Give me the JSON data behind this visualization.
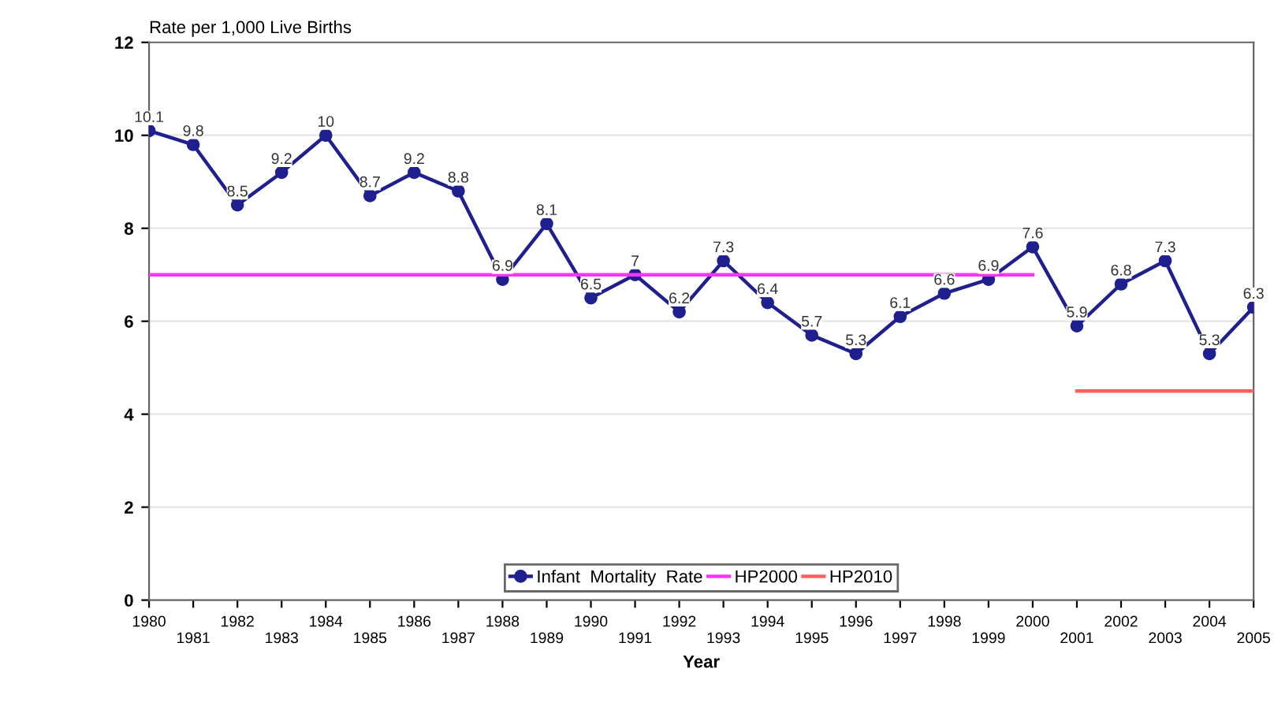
{
  "chart_data": {
    "type": "line",
    "ylabel": "Rate per 1,000 Live Births",
    "xlabel": "Year",
    "categories": [
      "1980",
      "1981",
      "1982",
      "1983",
      "1984",
      "1985",
      "1986",
      "1987",
      "1988",
      "1989",
      "1990",
      "1991",
      "1992",
      "1993",
      "1994",
      "1995",
      "1996",
      "1997",
      "1998",
      "1999",
      "2000",
      "2001",
      "2002",
      "2003",
      "2004",
      "2005"
    ],
    "series": [
      {
        "name": "Infant  Mortality  Rate",
        "color": "#1f1f8f",
        "marker": "circle",
        "data_labels": true,
        "values": [
          10.1,
          9.8,
          8.5,
          9.2,
          10,
          8.7,
          9.2,
          8.8,
          6.9,
          8.1,
          6.5,
          7,
          6.2,
          7.3,
          6.4,
          5.7,
          5.3,
          6.1,
          6.6,
          6.9,
          7.6,
          5.9,
          6.8,
          7.3,
          5.3,
          6.3
        ]
      },
      {
        "name": "HP2000",
        "color": "#ff33ff",
        "marker": "none",
        "values": [
          7,
          7,
          7,
          7,
          7,
          7,
          7,
          7,
          7,
          7,
          7,
          7,
          7,
          7,
          7,
          7,
          7,
          7,
          7,
          7,
          7,
          null,
          null,
          null,
          null,
          null
        ]
      },
      {
        "name": "HP2010",
        "color": "#ff6060",
        "marker": "none",
        "values": [
          null,
          null,
          null,
          null,
          null,
          null,
          null,
          null,
          null,
          null,
          null,
          null,
          null,
          null,
          null,
          null,
          null,
          null,
          null,
          null,
          null,
          4.5,
          4.5,
          4.5,
          4.5,
          4.5
        ]
      }
    ],
    "ylim": [
      0,
      12
    ],
    "yticks": [
      0,
      2,
      4,
      6,
      8,
      10,
      12
    ],
    "grid": "y",
    "legend": "bottom",
    "line_style": "solid"
  }
}
